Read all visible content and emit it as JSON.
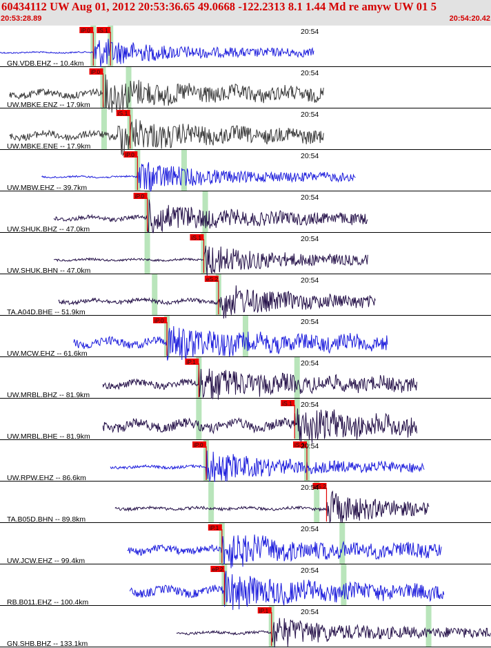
{
  "header": {
    "title": "60434112 UW Aug 01, 2012 20:53:36.65    49.0668 -122.2313  8.1 1.44 Md re amyw UW 01   5",
    "time_start": "20:53:28.89",
    "time_end": "20:54:20.42"
  },
  "colors": {
    "header_bg": "#e2e2e2",
    "header_text": "#d40000",
    "pick_box": "#ee0000",
    "window": "#b9e5bb"
  },
  "chart_data": {
    "type": "line",
    "title": "60434112 UW Aug 01, 2012 20:53:36.65    49.0668 -122.2313  8.1 1.44 Md re amyw UW 01   5",
    "x_range": [
      "20:53:28.89",
      "20:54:20.42"
    ],
    "tick_label": "20:54",
    "traces": [
      {
        "label": "GN.VDB.EHZ -- 10.4km",
        "color": "#1c1cdc",
        "start": 0.0,
        "end": 0.64,
        "base": 1,
        "picks": [
          {
            "label": "iP.0",
            "t": 0.19
          },
          {
            "label": "iS.1",
            "t": 0.225
          }
        ],
        "windows": [
          0.19,
          0.225
        ],
        "event": 0.19
      },
      {
        "label": "UW.MBKE.ENZ -- 17.9km",
        "color": "#3a3a3a",
        "start": 0.02,
        "end": 0.66,
        "base": 5,
        "picks": [
          {
            "label": "iP.0",
            "t": 0.21
          }
        ],
        "windows": [
          0.21,
          0.262
        ],
        "event": 0.21
      },
      {
        "label": "UW.MBKE.ENE -- 17.9km",
        "color": "#3a3a3a",
        "start": 0.02,
        "end": 0.66,
        "base": 5,
        "picks": [
          {
            "label": "iS.1",
            "t": 0.265
          }
        ],
        "windows": [
          0.212,
          0.265
        ],
        "event": 0.24
      },
      {
        "label": "UW.MBW.EHZ -- 39.7km",
        "color": "#1c1cdc",
        "start": 0.085,
        "end": 0.725,
        "base": 1.2,
        "picks": [
          {
            "label": "iP.0",
            "t": 0.28
          }
        ],
        "windows": [
          0.28,
          0.375
        ],
        "event": 0.28
      },
      {
        "label": "UW.SHUK.BHZ -- 47.0km",
        "color": "#241048",
        "start": 0.11,
        "end": 0.75,
        "base": 3,
        "picks": [
          {
            "label": "iP.0",
            "t": 0.3
          }
        ],
        "windows": [
          0.3,
          0.418
        ],
        "event": 0.3
      },
      {
        "label": "UW.SHUK.BHN -- 47.0km",
        "color": "#241048",
        "start": 0.11,
        "end": 0.75,
        "base": 1.5,
        "picks": [
          {
            "label": "iS.1",
            "t": 0.415
          }
        ],
        "windows": [
          0.3,
          0.415
        ],
        "event": 0.415
      },
      {
        "label": "TA.A04D.BHE -- 51.9km",
        "color": "#241048",
        "start": 0.12,
        "end": 0.765,
        "base": 3,
        "picks": [
          {
            "label": "eS.2",
            "t": 0.445
          }
        ],
        "windows": [
          0.315,
          0.445
        ],
        "event": 0.445
      },
      {
        "label": "UW.MCW.EHZ -- 61.6km",
        "color": "#1c1cdc",
        "start": 0.15,
        "end": 0.79,
        "base": 6,
        "picks": [
          {
            "label": "iP.0",
            "t": 0.34
          }
        ],
        "windows": [
          0.34,
          0.5
        ],
        "event": 0.34
      },
      {
        "label": "UW.MRBL.BHZ -- 81.9km",
        "color": "#241048",
        "start": 0.21,
        "end": 0.85,
        "base": 5,
        "picks": [
          {
            "label": "iP.1",
            "t": 0.405
          }
        ],
        "windows": [
          0.405,
          0.605
        ],
        "event": 0.405
      },
      {
        "label": "UW.MRBL.BHE -- 81.9km",
        "color": "#241048",
        "start": 0.21,
        "end": 0.85,
        "base": 7,
        "picks": [
          {
            "label": "iS.1",
            "t": 0.6
          }
        ],
        "windows": [
          0.405,
          0.605
        ],
        "event": 0.6
      },
      {
        "label": "UW.RPW.EHZ -- 86.6km",
        "color": "#1c1cdc",
        "start": 0.225,
        "end": 0.865,
        "base": 2,
        "picks": [
          {
            "label": "iP.0",
            "t": 0.42
          },
          {
            "label": "iS.1",
            "t": 0.625
          }
        ],
        "windows": [
          0.42,
          0.625
        ],
        "event": 0.42
      },
      {
        "label": "TA.B05D.BHN -- 89.8km",
        "color": "#241048",
        "start": 0.235,
        "end": 0.875,
        "base": 2,
        "picks": [
          {
            "label": "eS.2",
            "t": 0.665
          }
        ],
        "windows": [
          0.43,
          0.645
        ],
        "event": 0.665
      },
      {
        "label": "UW.JCW.EHZ -- 99.4km",
        "color": "#1c1cdc",
        "start": 0.26,
        "end": 0.9,
        "base": 5,
        "picks": [
          {
            "label": "iP.1",
            "t": 0.452
          }
        ],
        "windows": [
          0.452,
          0.697
        ],
        "event": 0.452
      },
      {
        "label": "RB.B011.EHZ -- 100.4km",
        "color": "#1c1cdc",
        "start": 0.265,
        "end": 0.905,
        "base": 6,
        "picks": [
          {
            "label": "eP.2",
            "t": 0.457
          }
        ],
        "windows": [
          0.457,
          0.7
        ],
        "event": 0.457
      },
      {
        "label": "GN.SHB.BHZ -- 133.1km",
        "color": "#241048",
        "start": 0.36,
        "end": 1.0,
        "base": 2,
        "picks": [
          {
            "label": "iP.1",
            "t": 0.553
          }
        ],
        "windows": [
          0.553,
          0.873
        ],
        "event": 0.553
      }
    ]
  }
}
